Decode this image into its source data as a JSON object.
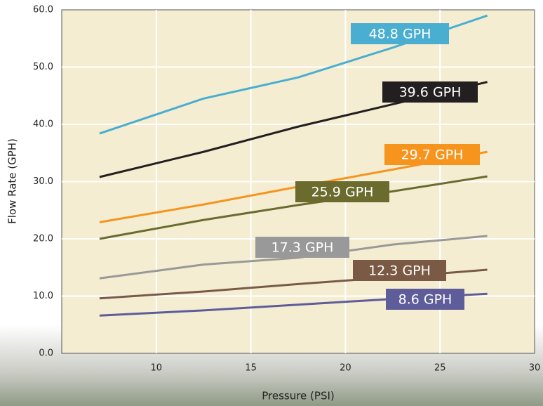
{
  "chart_data": {
    "type": "line",
    "x_label": "Pressure (PSI)",
    "y_label": "Flow Rate (GPH)",
    "x": [
      7,
      12.5,
      17.5,
      22.5,
      27.5
    ],
    "series": [
      {
        "color": "#4aaed0",
        "values": [
          38.4,
          44.5,
          48.2,
          53.4,
          59.0
        ],
        "annotation": "48.8 GPH"
      },
      {
        "color": "#231f20",
        "values": [
          30.8,
          35.2,
          39.6,
          43.5,
          47.4
        ],
        "annotation": "39.6 GPH"
      },
      {
        "color": "#f7941d",
        "values": [
          22.9,
          26.0,
          29.1,
          32.1,
          35.2
        ],
        "annotation": "29.7 GPH"
      },
      {
        "color": "#6b6b2e",
        "values": [
          20.0,
          23.3,
          25.9,
          28.3,
          30.9
        ],
        "annotation": "25.9 GPH"
      },
      {
        "color": "#999999",
        "values": [
          13.1,
          15.5,
          16.7,
          19.0,
          20.5
        ],
        "annotation": "17.3 GPH"
      },
      {
        "color": "#7b5a45",
        "values": [
          9.6,
          10.8,
          12.1,
          13.3,
          14.6
        ],
        "annotation": "12.3 GPH"
      },
      {
        "color": "#5e5c99",
        "values": [
          6.6,
          7.5,
          8.5,
          9.5,
          10.4
        ],
        "annotation": "8.6 GPH"
      }
    ],
    "xlim": [
      5,
      30
    ],
    "xticks": [
      10,
      15,
      20,
      25,
      30
    ],
    "ylim": [
      0,
      60
    ],
    "yticks": [
      {
        "value": 0,
        "label": "0.0"
      },
      {
        "value": 10,
        "label": "10.0"
      },
      {
        "value": 20,
        "label": "20.0"
      },
      {
        "value": 30,
        "label": "30.0"
      },
      {
        "value": 40,
        "label": "40.0"
      },
      {
        "value": 50,
        "label": "50.0"
      },
      {
        "value": 60,
        "label": "60.0"
      }
    ],
    "grid": true
  }
}
